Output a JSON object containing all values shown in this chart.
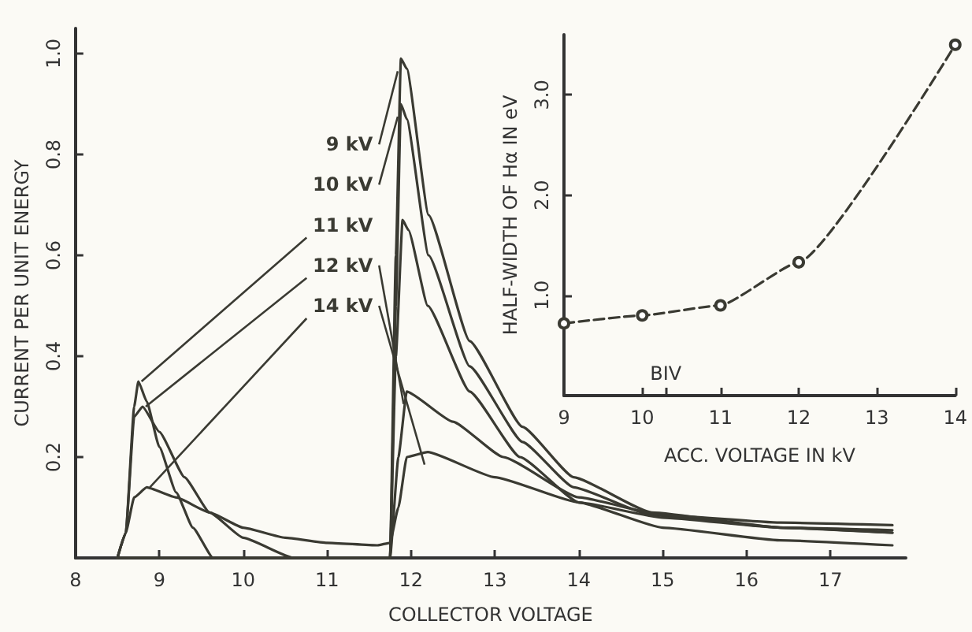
{
  "chart_data": [
    {
      "type": "line",
      "xlabel": "COLLECTOR VOLTAGE",
      "ylabel": "CURRENT PER UNIT ENERGY",
      "xlim": [
        8,
        17.9
      ],
      "xticks": [
        8,
        9,
        10,
        11,
        12,
        13,
        14,
        15,
        16,
        17
      ],
      "ylim": [
        0,
        1.05
      ],
      "yticks": [
        {
          "value": 0.2,
          "label": "0.2"
        },
        {
          "value": 0.4,
          "label": "0.4"
        },
        {
          "value": 0.6,
          "label": "0.6"
        },
        {
          "value": 0.8,
          "label": "0.8"
        },
        {
          "value": 1.0,
          "label": "1.0"
        }
      ],
      "grid": false,
      "legend": false,
      "marker": "none",
      "line_style": "solid",
      "series": [
        {
          "name": "9 kV",
          "color": "#3a3a32",
          "x": [
            8.5,
            11.75,
            11.82,
            11.88,
            11.95,
            12.21,
            12.7,
            13.33,
            13.94,
            14.87,
            16.44,
            17.74
          ],
          "values": [
            0,
            0,
            0.6,
            0.99,
            0.97,
            0.68,
            0.43,
            0.26,
            0.16,
            0.09,
            0.06,
            0.055
          ]
        },
        {
          "name": "10 kV",
          "color": "#3a3a32",
          "x": [
            8.5,
            11.75,
            11.82,
            11.88,
            11.95,
            12.21,
            12.7,
            13.33,
            13.94,
            14.87,
            16.44,
            17.74
          ],
          "values": [
            0,
            0,
            0.5,
            0.9,
            0.87,
            0.6,
            0.38,
            0.23,
            0.14,
            0.085,
            0.06,
            0.05
          ]
        },
        {
          "name": "11 kV",
          "color": "#3a3a32",
          "x": [
            8.5,
            8.6,
            8.7,
            8.75,
            8.85,
            9.0,
            9.2,
            9.4,
            9.64,
            11.75,
            11.82,
            11.9,
            11.97,
            12.2,
            12.7,
            13.3,
            14.0,
            15.0,
            16.4,
            17.74
          ],
          "values": [
            0,
            0.05,
            0.3,
            0.35,
            0.31,
            0.22,
            0.13,
            0.06,
            0,
            0,
            0.4,
            0.67,
            0.65,
            0.5,
            0.33,
            0.2,
            0.11,
            0.06,
            0.035,
            0.025
          ]
        },
        {
          "name": "12 kV",
          "color": "#3a3a32",
          "x": [
            8.5,
            8.6,
            8.7,
            8.8,
            9.0,
            9.3,
            9.6,
            10.0,
            10.6,
            11.75,
            11.85,
            11.95,
            12.5,
            13.1,
            14.0,
            15.0,
            16.4,
            17.74
          ],
          "values": [
            0,
            0.05,
            0.28,
            0.3,
            0.25,
            0.16,
            0.09,
            0.04,
            0,
            0,
            0.2,
            0.33,
            0.27,
            0.2,
            0.12,
            0.085,
            0.07,
            0.065
          ]
        },
        {
          "name": "14 kV",
          "color": "#3a3a32",
          "x": [
            8.5,
            8.6,
            8.7,
            8.85,
            9.2,
            9.6,
            10.0,
            10.5,
            11.0,
            11.6,
            11.75,
            11.85,
            11.95,
            12.2,
            13.0,
            14.0,
            15.0,
            16.4,
            17.74
          ],
          "values": [
            0,
            0.05,
            0.12,
            0.14,
            0.12,
            0.09,
            0.06,
            0.04,
            0.03,
            0.025,
            0.03,
            0.1,
            0.2,
            0.21,
            0.16,
            0.11,
            0.08,
            0.06,
            0.05
          ]
        }
      ]
    },
    {
      "type": "line",
      "xlabel": "ACC. VOLTAGE IN kV",
      "ylabel": "HALF-WIDTH OF Hα IN eV",
      "xlim": [
        9,
        14
      ],
      "xticks": [
        9,
        10,
        {
          "value": 10.3,
          "label": null
        },
        11,
        12,
        13,
        14
      ],
      "ylim": [
        0,
        3.6
      ],
      "yticks": [
        {
          "value": 1,
          "label": "1.0"
        },
        {
          "value": 2,
          "label": "2.0"
        },
        {
          "value": 3,
          "label": "3.0"
        }
      ],
      "grid": false,
      "legend": false,
      "marker": "circle",
      "line_style": "dashed",
      "annotations": [
        "BIV"
      ],
      "series": [
        {
          "color": "#3a3a32",
          "x": [
            9,
            10,
            11,
            12,
            14
          ],
          "values": [
            0.72,
            0.8,
            0.9,
            1.33,
            3.5
          ]
        }
      ]
    }
  ]
}
